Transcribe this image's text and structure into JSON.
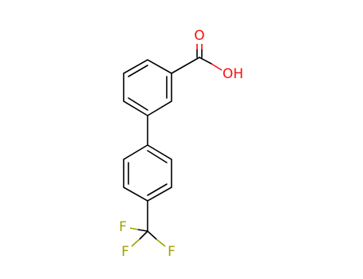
{
  "atoms": {
    "carbonyl_oxygen": "O",
    "hydroxyl": "OH",
    "fluorines": [
      "F",
      "F",
      "F"
    ]
  }
}
